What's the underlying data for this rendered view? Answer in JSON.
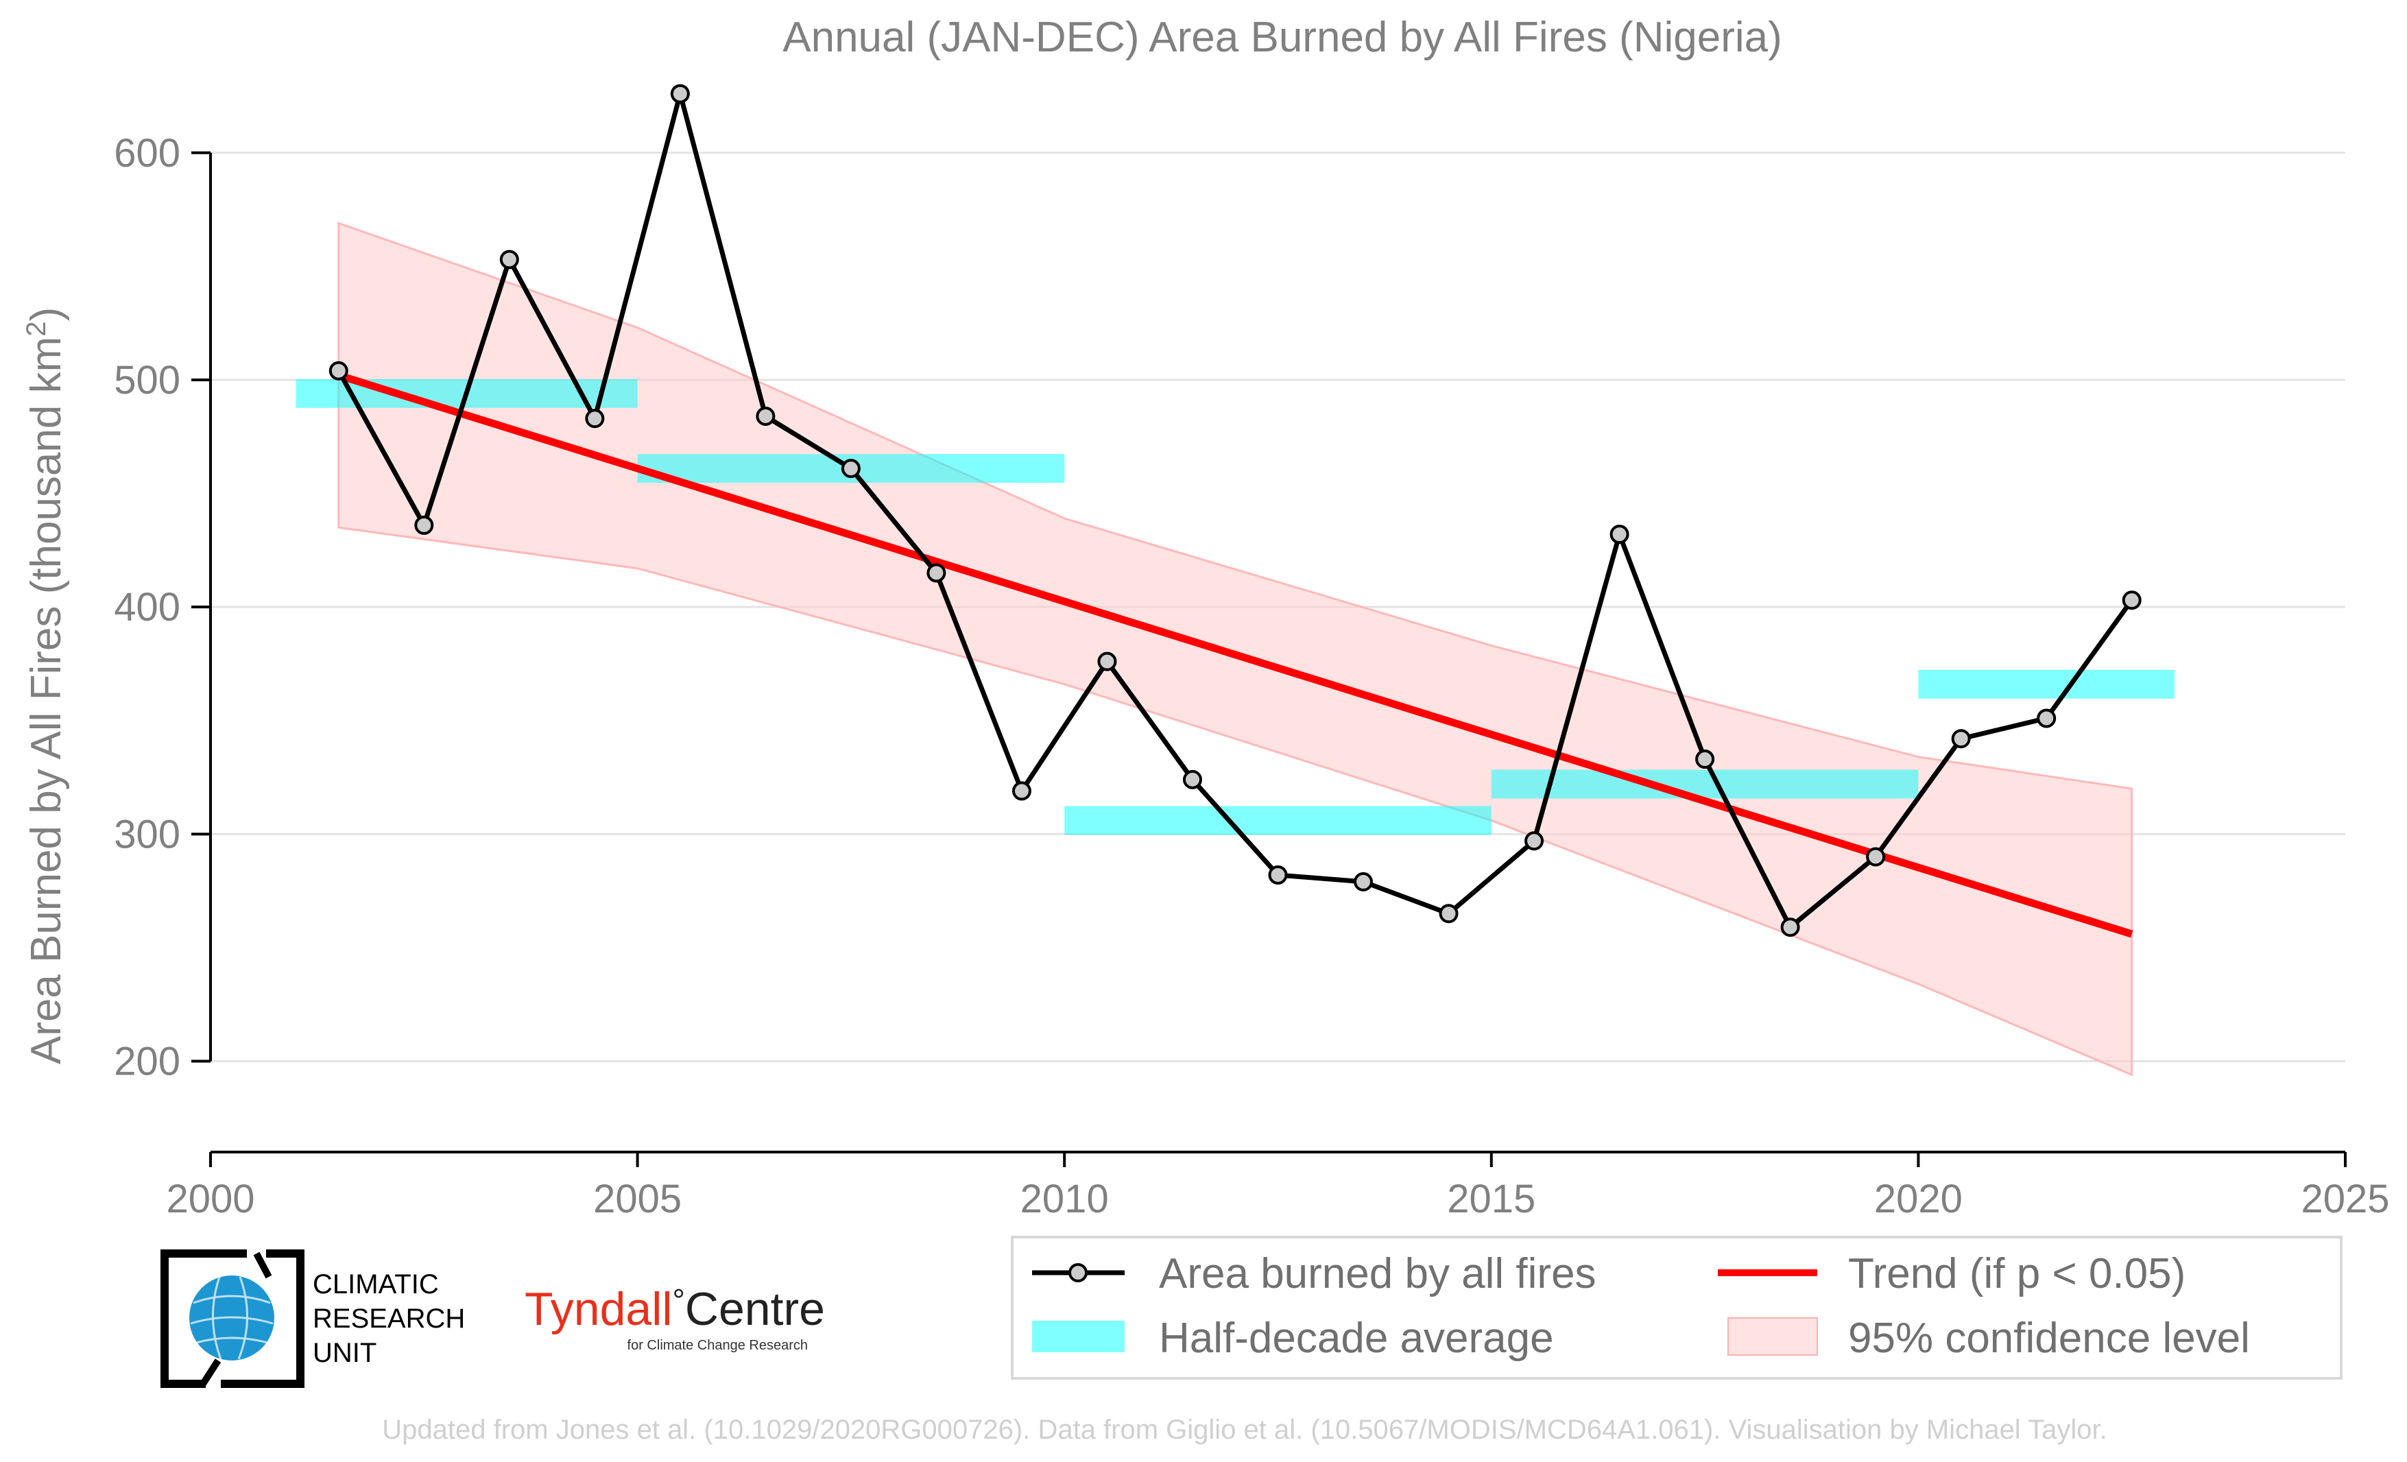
{
  "chart_data": {
    "type": "line",
    "title": "Annual (JAN-DEC) Area Burned by All Fires (Nigeria)",
    "ylabel_main": "Area Burned by All Fires (thousand km",
    "ylabel_sup": "2",
    "ylabel_close": ")",
    "xlim": [
      2000,
      2025
    ],
    "ylim": [
      160,
      625
    ],
    "x_ticks": [
      2000,
      2005,
      2010,
      2015,
      2020,
      2025
    ],
    "y_ticks": [
      200,
      300,
      400,
      500,
      600
    ],
    "grid": "horizontal",
    "legend_position": "bottom-right",
    "series": [
      {
        "name": "Area burned by all fires",
        "color": "#000000",
        "marker_fill": "#cccccc",
        "x": [
          2001.5,
          2002.5,
          2003.5,
          2004.5,
          2005.5,
          2006.5,
          2007.5,
          2008.5,
          2009.5,
          2010.5,
          2011.5,
          2012.5,
          2013.5,
          2014.5,
          2015.5,
          2016.5,
          2017.5,
          2018.5,
          2019.5,
          2020.5,
          2021.5,
          2022.5
        ],
        "y": [
          504,
          436,
          553,
          483,
          626,
          484,
          461,
          415,
          319,
          376,
          324,
          282,
          279,
          265,
          297,
          432,
          333,
          259,
          290,
          342,
          351,
          403
        ]
      }
    ],
    "half_decade_average": {
      "name": "Half-decade average",
      "color": "#00ffff",
      "segments": [
        {
          "x0": 2001,
          "x1": 2005,
          "y": 494
        },
        {
          "x0": 2005,
          "x1": 2010,
          "y": 461
        },
        {
          "x0": 2010,
          "x1": 2015,
          "y": 306
        },
        {
          "x0": 2015,
          "x1": 2020,
          "y": 322
        },
        {
          "x0": 2020,
          "x1": 2023,
          "y": 366
        }
      ]
    },
    "trend": {
      "name": "Trend (if p < 0.05)",
      "color": "#ff0000",
      "x": [
        2001.5,
        2022.5
      ],
      "y": [
        502,
        256
      ]
    },
    "confidence_band": {
      "name": "95% confidence level",
      "color": "#ffcccc",
      "x": [
        2001.5,
        2005,
        2010,
        2015,
        2020,
        2022.5
      ],
      "upper": [
        569,
        523,
        439,
        383,
        334,
        320
      ],
      "lower": [
        435,
        417,
        366,
        306,
        234,
        194
      ]
    }
  },
  "legend": {
    "items": [
      {
        "key": "area",
        "label": "Area burned by all fires"
      },
      {
        "key": "trend",
        "label": "Trend (if p < 0.05)"
      },
      {
        "key": "halfdecade",
        "label": "Half-decade average"
      },
      {
        "key": "ci",
        "label": "95% confidence level"
      }
    ]
  },
  "logos": {
    "cru_line1": "CLIMATIC",
    "cru_line2": "RESEARCH",
    "cru_line3": "UNIT",
    "tyndall_main": "Tyndall",
    "tyndall_degree": "°",
    "tyndall_centre": "Centre",
    "tyndall_sub": "for Climate Change Research",
    "tyndall_color": "#e8301c"
  },
  "footer": "Updated from Jones et al. (10.1029/2020RG000726). Data from Giglio et al. (10.5067/MODIS/MCD64A1.061). Visualisation by Michael Taylor."
}
